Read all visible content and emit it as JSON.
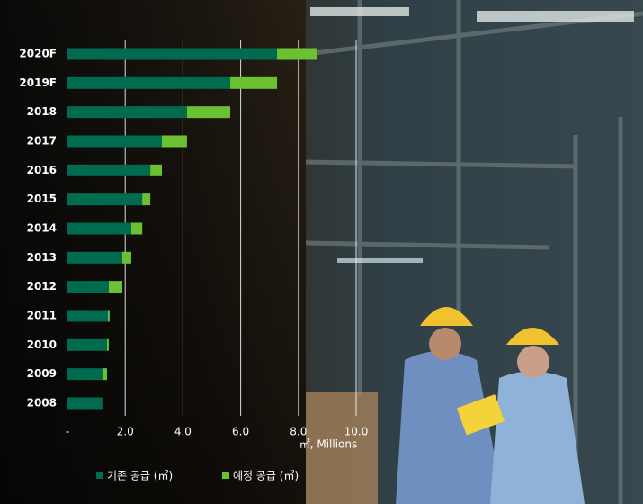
{
  "chart_data": {
    "type": "stacked-barh",
    "categories": [
      "2020F",
      "2019F",
      "2018",
      "2017",
      "2016",
      "2015",
      "2014",
      "2013",
      "2012",
      "2011",
      "2010",
      "2009",
      "2008"
    ],
    "series": [
      {
        "name": "기존 공급 (㎡)",
        "color": "#006b4f",
        "values": [
          7.26,
          5.64,
          4.14,
          3.27,
          2.87,
          2.59,
          2.21,
          1.9,
          1.43,
          1.4,
          1.37,
          1.21,
          1.21
        ]
      },
      {
        "name": "예정 공급 (㎡)",
        "color": "#6cc132",
        "values": [
          1.4,
          1.62,
          1.5,
          0.87,
          0.4,
          0.28,
          0.38,
          0.31,
          0.47,
          0.06,
          0.06,
          0.16,
          0
        ]
      }
    ],
    "x_label": "㎡, Millions",
    "xlim": [
      0,
      10
    ],
    "xticks": [
      {
        "value": 0,
        "label": "-"
      },
      {
        "value": 2,
        "label": "2.0"
      },
      {
        "value": 4,
        "label": "4.0"
      },
      {
        "value": 6,
        "label": "6.0"
      },
      {
        "value": 8,
        "label": "8.0"
      },
      {
        "value": 10,
        "label": "10.0"
      }
    ],
    "grid": true
  }
}
